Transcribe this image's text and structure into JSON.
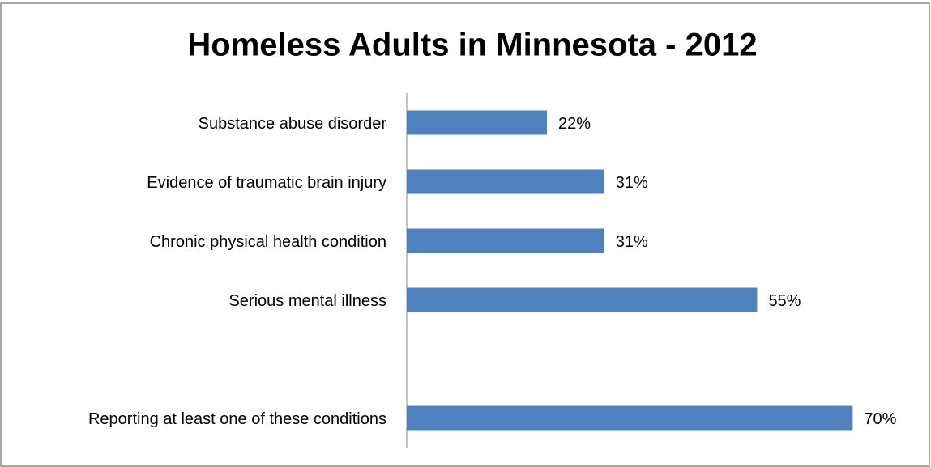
{
  "chart_data": {
    "type": "bar",
    "orientation": "horizontal",
    "title": "Homeless Adults in Minnesota - 2012",
    "categories": [
      "Substance abuse disorder",
      "Evidence of traumatic brain injury",
      "Chronic physical health condition",
      "Serious mental illness",
      null,
      "Reporting at least one of these conditions"
    ],
    "values": [
      22,
      31,
      31,
      55,
      null,
      70
    ],
    "value_labels": [
      "22%",
      "31%",
      "31%",
      "55%",
      null,
      "70%"
    ],
    "color": "#4f81bd",
    "xlim": [
      0,
      80
    ]
  }
}
